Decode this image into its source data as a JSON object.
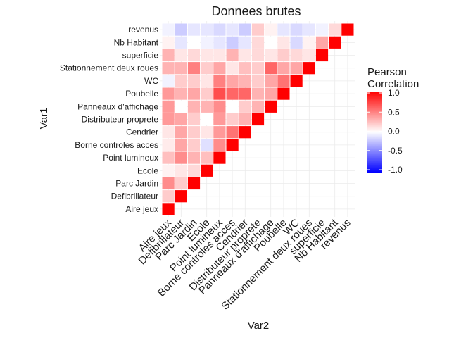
{
  "chart_data": {
    "type": "heatmap",
    "title": "Donnees brutes",
    "xlabel": "Var2",
    "ylabel": "Var1",
    "variables": [
      "Aire jeux",
      "Defibrillateur",
      "Parc Jardin",
      "Ecole",
      "Point lumineux",
      "Borne controles acces",
      "Cendrier",
      "Distributeur proprete",
      "Panneaux d'affichage",
      "Poubelle",
      "WC",
      "Stationnement deux roues",
      "superficie",
      "Nb Habitant",
      "revenus"
    ],
    "correlation_lower_triangle": [
      [
        1.0
      ],
      [
        0.2,
        1.0
      ],
      [
        0.45,
        0.2,
        1.0
      ],
      [
        0.05,
        0.1,
        0.15,
        1.0
      ],
      [
        0.25,
        0.45,
        0.3,
        0.25,
        1.0
      ],
      [
        0.08,
        0.35,
        0.2,
        -0.12,
        0.45,
        1.0
      ],
      [
        0.1,
        0.35,
        0.2,
        0.1,
        0.4,
        0.55,
        1.0
      ],
      [
        0.4,
        0.35,
        0.2,
        0.0,
        0.4,
        0.2,
        0.3,
        1.0
      ],
      [
        0.4,
        0.0,
        0.3,
        0.3,
        0.45,
        0.0,
        0.2,
        0.3,
        1.0
      ],
      [
        0.4,
        0.3,
        0.35,
        0.2,
        0.7,
        0.6,
        0.6,
        0.3,
        0.35,
        1.0
      ],
      [
        -0.05,
        0.2,
        0.2,
        0.1,
        0.5,
        0.35,
        0.3,
        0.2,
        0.35,
        0.55,
        1.0
      ],
      [
        0.3,
        0.3,
        0.5,
        0.2,
        0.35,
        0.1,
        0.25,
        0.2,
        0.6,
        0.35,
        0.35,
        1.0
      ],
      [
        0.3,
        0.1,
        0.15,
        0.1,
        0.1,
        0.3,
        0.1,
        0.15,
        0.1,
        0.2,
        0.15,
        0.1,
        1.0
      ],
      [
        0.05,
        -0.1,
        0.0,
        -0.05,
        -0.1,
        -0.2,
        -0.1,
        0.15,
        0.0,
        0.1,
        -0.15,
        0.05,
        0.35,
        1.0
      ],
      [
        -0.05,
        -0.2,
        -0.1,
        -0.1,
        -0.15,
        -0.1,
        -0.2,
        0.2,
        0.05,
        -0.1,
        -0.15,
        -0.1,
        -0.05,
        0.15,
        1.0
      ]
    ],
    "legend": {
      "title": [
        "Pearson",
        "Correlation"
      ],
      "ticks": [
        "1.0",
        "0.5",
        "0.0",
        "-0.5",
        "-1.0"
      ],
      "tick_values": [
        1.0,
        0.5,
        0.0,
        -0.5,
        -1.0
      ],
      "range": [
        -1,
        1
      ],
      "colors": {
        "low": "#0000ff",
        "mid": "#ffffff",
        "high": "#ff0000"
      }
    },
    "grid": true
  }
}
